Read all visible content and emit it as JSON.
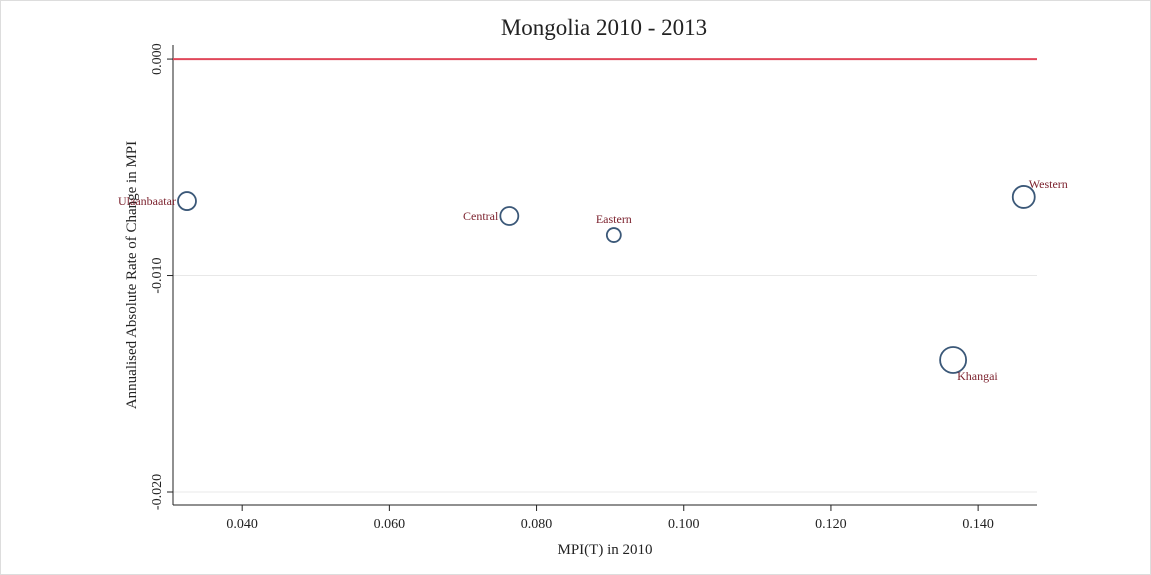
{
  "chart_data": {
    "type": "scatter",
    "title": "Mongolia 2010 - 2013",
    "x_label": "MPI(T) in 2010",
    "y_label": "Annualised Absolute Rate of Change in MPI",
    "labels": [
      "Ulaanbaatar",
      "Central",
      "Eastern",
      "Western",
      "Khangai"
    ],
    "x": [
      0.0325,
      0.0763,
      0.0905,
      0.1462,
      0.1366
    ],
    "values": [
      -0.00656,
      -0.00725,
      -0.00813,
      -0.00637,
      -0.0139
    ],
    "sizes": [
      9,
      9,
      7,
      11,
      13
    ],
    "label_positions": [
      "left",
      "left",
      "top",
      "top-right",
      "bottom-right"
    ],
    "color": "#3b5878",
    "label_color": "#7a1f2b",
    "hline": 0,
    "hline_color": "#e0475a",
    "xlim": [
      0.0306,
      0.148
    ],
    "ylim": [
      -0.0206,
      0.00065
    ],
    "xticks": [
      {
        "value": 0.04,
        "label": "0.040"
      },
      {
        "value": 0.06,
        "label": "0.060"
      },
      {
        "value": 0.08,
        "label": "0.080"
      },
      {
        "value": 0.1,
        "label": "0.100"
      },
      {
        "value": 0.12,
        "label": "0.120"
      },
      {
        "value": 0.14,
        "label": "0.140"
      }
    ],
    "yticks": [
      {
        "value": 0,
        "label": "0.000"
      },
      {
        "value": -0.01,
        "label": "-0.010"
      },
      {
        "value": -0.02,
        "label": "-0.020"
      }
    ],
    "grid": true
  }
}
